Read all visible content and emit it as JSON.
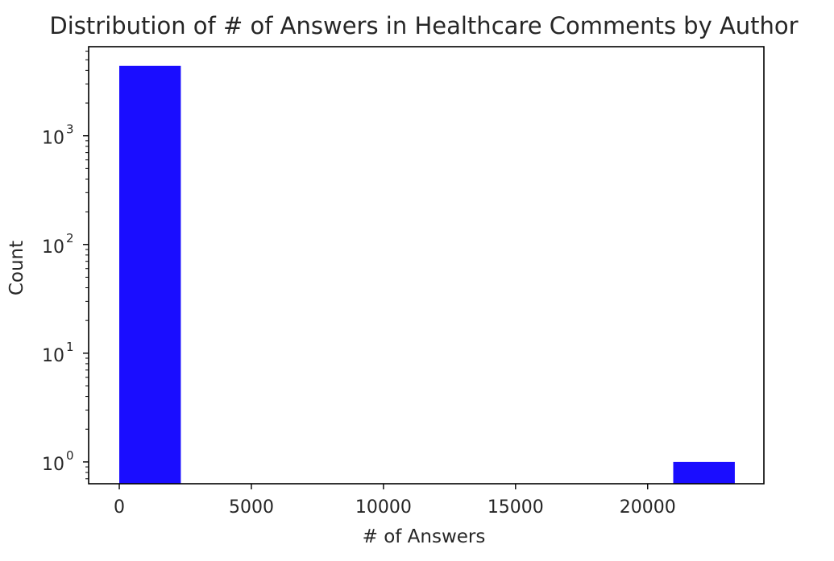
{
  "chart_data": {
    "type": "bar",
    "title": "Distribution of # of Answers in Healthcare Comments by Author",
    "xlabel": "# of Answers",
    "ylabel": "Count",
    "y_scale": "log",
    "xlim": [
      -1160,
      24400
    ],
    "ylim": [
      0.63,
      6600
    ],
    "bins": [
      {
        "x0": 0,
        "x1": 2330,
        "count": 4400
      },
      {
        "x0": 20970,
        "x1": 23300,
        "count": 1
      }
    ],
    "x_ticks": [
      {
        "value": 0,
        "label": "0"
      },
      {
        "value": 5000,
        "label": "5000"
      },
      {
        "value": 10000,
        "label": "10000"
      },
      {
        "value": 15000,
        "label": "15000"
      },
      {
        "value": 20000,
        "label": "20000"
      }
    ],
    "y_ticks": [
      {
        "value": 1,
        "base": "10",
        "exp": "0"
      },
      {
        "value": 10,
        "base": "10",
        "exp": "1"
      },
      {
        "value": 100,
        "base": "10",
        "exp": "2"
      },
      {
        "value": 1000,
        "base": "10",
        "exp": "3"
      }
    ],
    "grid": false,
    "legend": "none",
    "bar_color": "#1a0dff"
  }
}
